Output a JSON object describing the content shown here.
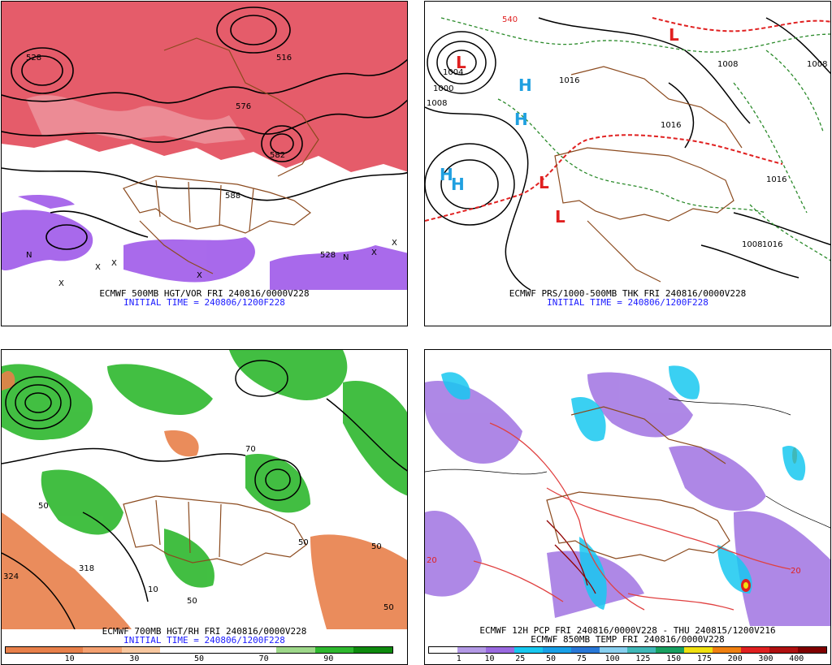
{
  "panels": [
    {
      "title": "ECMWF 500MB HGT/VOR FRI 240816/0000V228",
      "init": "INITIAL TIME = 240806/1200F228",
      "contour_labels": [
        "528",
        "576",
        "588",
        "528",
        "516",
        "582"
      ],
      "markers": [
        "N",
        "X",
        "X",
        "X",
        "X",
        "X",
        "X",
        "N"
      ]
    },
    {
      "title": "ECMWF PRS/1000-500MB THK FRI 240816/0000V228",
      "init": "INITIAL TIME = 240806/1200F228",
      "contour_labels": [
        "1004",
        "1000",
        "1008",
        "1016",
        "1008",
        "1008",
        "1016",
        "1016",
        "1008",
        "1016",
        "540"
      ],
      "pressure_centers": [
        {
          "letter": "L",
          "color": "#e02020"
        },
        {
          "letter": "L",
          "color": "#e02020"
        },
        {
          "letter": "L",
          "color": "#e02020"
        },
        {
          "letter": "L",
          "color": "#e02020"
        },
        {
          "letter": "H",
          "color": "#20a0e0"
        },
        {
          "letter": "H",
          "color": "#20a0e0"
        },
        {
          "letter": "H",
          "color": "#20a0e0"
        },
        {
          "letter": "H",
          "color": "#20a0e0"
        }
      ]
    },
    {
      "title": "ECMWF 700MB HGT/RH FRI 240816/0000V228",
      "init": "INITIAL TIME = 240806/1200F228",
      "contour_labels": [
        "318",
        "324",
        "50",
        "50",
        "50",
        "50",
        "10",
        "50",
        "70"
      ],
      "colorbar": {
        "colors": [
          "#e8804a",
          "#e8804a",
          "#f4a070",
          "#f8c8a0",
          "#ffffff",
          "#ffffff",
          "#ffffff",
          "#9ed88a",
          "#2eb82e",
          "#0e8a0e"
        ],
        "ticks": [
          "10",
          "30",
          "50",
          "70",
          "90"
        ]
      }
    },
    {
      "title": "ECMWF 12H PCP FRI 240816/0000V228 - THU 240815/1200V216",
      "title2": "ECMWF 850MB TEMP FRI 240816/0000V228",
      "contour_labels": [
        "20",
        "20"
      ],
      "colorbar": {
        "colors": [
          "#ffffff",
          "#b49ae6",
          "#9a6ae0",
          "#18c8f0",
          "#18a0e8",
          "#2878d8",
          "#88d0f0",
          "#40b8b8",
          "#18a060",
          "#f0e010",
          "#f08010",
          "#e02020",
          "#b01010",
          "#800000"
        ],
        "ticks": [
          "1",
          "10",
          "25",
          "50",
          "75",
          "100",
          "125",
          "150",
          "175",
          "200",
          "300",
          "400"
        ]
      }
    }
  ]
}
